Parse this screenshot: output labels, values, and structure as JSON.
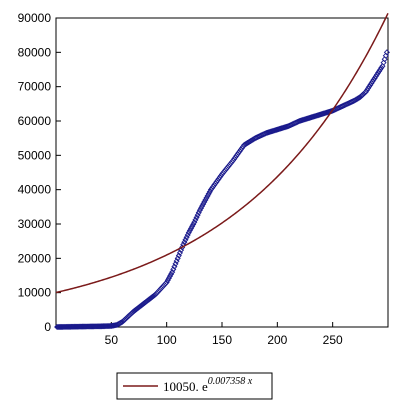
{
  "chart_data": {
    "type": "scatter",
    "title": "",
    "xlabel": "",
    "ylabel": "",
    "xlim": [
      0,
      300
    ],
    "ylim": [
      0,
      90000
    ],
    "x_ticks": [
      50,
      100,
      150,
      200,
      250
    ],
    "y_ticks": [
      0,
      10000,
      20000,
      30000,
      40000,
      50000,
      60000,
      70000,
      80000,
      90000
    ],
    "x_tick_labels": [
      "50",
      "100",
      "150",
      "200",
      "250"
    ],
    "y_tick_labels": [
      "0",
      "10000",
      "20000",
      "30000",
      "40000",
      "50000",
      "60000",
      "70000",
      "80000",
      "90000"
    ],
    "grid": false,
    "legend_position": "bottom",
    "series": [
      {
        "kind": "points",
        "color": "#1a1a8c",
        "marker": "diamond",
        "anchors_x": [
          1,
          20,
          40,
          50,
          55,
          60,
          65,
          70,
          80,
          90,
          100,
          105,
          110,
          115,
          120,
          125,
          130,
          140,
          150,
          160,
          170,
          175,
          180,
          190,
          200,
          210,
          220,
          230,
          240,
          250,
          260,
          270,
          275,
          280,
          285,
          290,
          295,
          299
        ],
        "anchors_y": [
          0,
          100,
          200,
          300,
          600,
          1500,
          3000,
          4500,
          7000,
          9500,
          13000,
          16000,
          20000,
          24000,
          27500,
          30500,
          34000,
          40000,
          44500,
          48500,
          53000,
          54000,
          55000,
          56500,
          57500,
          58500,
          60000,
          61000,
          62000,
          63000,
          64500,
          66000,
          67000,
          68500,
          71000,
          73500,
          76000,
          80000
        ]
      },
      {
        "kind": "line",
        "name": "10050. e",
        "exponent_label": "0.007358 x",
        "color": "#7b1a1a",
        "a": 10050,
        "b": 0.007358
      }
    ]
  },
  "legend": {
    "coefficient": "10050. e",
    "exponent": "0.007358 x"
  }
}
